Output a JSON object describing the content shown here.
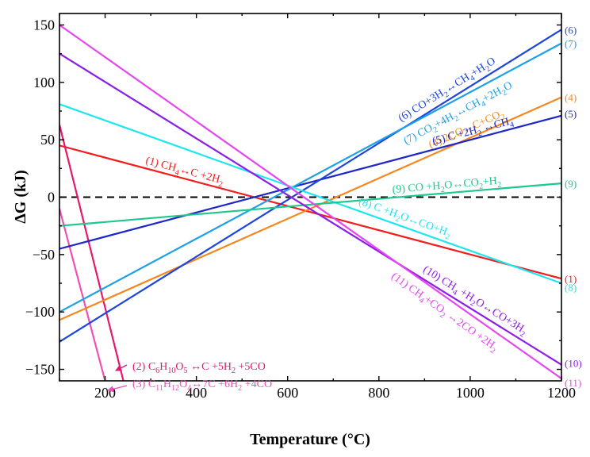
{
  "chart_data": {
    "type": "line",
    "xlabel": "Temperature (°C)",
    "ylabel": "ΔG (kJ)",
    "xlim": [
      100,
      1200
    ],
    "ylim": [
      -160,
      160
    ],
    "x_ticks": [
      200,
      400,
      600,
      800,
      1000,
      1200
    ],
    "y_ticks": [
      150,
      100,
      50,
      0,
      -50,
      -100,
      -150
    ],
    "x_tick_labels": [
      "200",
      "400",
      "600",
      "800",
      "1000",
      "1200"
    ],
    "y_tick_labels": [
      "150",
      "100",
      "50",
      "0",
      "−50",
      "−100",
      "−150"
    ],
    "reference_line": {
      "y": 0,
      "style": "dashed",
      "color": "#000000"
    },
    "series": [
      {
        "id": "1",
        "end_label": "(1)",
        "label": "(1) CH4↔C +2H2",
        "color": "#f01e1e",
        "points": [
          [
            100,
            45
          ],
          [
            1200,
            -71
          ]
        ]
      },
      {
        "id": "2",
        "label": "(2) C6H10O5 ↔C +5H2 +5CO",
        "color": "#e8166e",
        "points": [
          [
            100,
            63
          ],
          [
            240,
            -160
          ]
        ]
      },
      {
        "id": "3",
        "label": "(3) C11H12O4↔7C +6H2 +4CO",
        "color": "#f050b4",
        "points": [
          [
            100,
            -10
          ],
          [
            200,
            -160
          ]
        ]
      },
      {
        "id": "4",
        "end_label": "(4)",
        "label": "(4) 2CO↔C+CO2",
        "color": "#f5871e",
        "points": [
          [
            100,
            -107
          ],
          [
            1200,
            87
          ]
        ]
      },
      {
        "id": "5",
        "end_label": "(5)",
        "label": "(5) C +2H2 ↔CH4",
        "color": "#1e28c8",
        "points": [
          [
            100,
            -45
          ],
          [
            1200,
            71
          ]
        ]
      },
      {
        "id": "6",
        "end_label": "(6)",
        "label": "(6) CO+3H2↔CH4+H2O",
        "color": "#1e46dc",
        "points": [
          [
            100,
            -126
          ],
          [
            1200,
            146
          ]
        ]
      },
      {
        "id": "7",
        "end_label": "(7)",
        "label": "(7) CO2+4H2↔CH4+2H2O",
        "color": "#1ea0e6",
        "points": [
          [
            100,
            -100
          ],
          [
            1200,
            134
          ]
        ]
      },
      {
        "id": "8",
        "end_label": "(8)",
        "label": "(8) C +H2O↔CO+H2",
        "color": "#1ee6f0",
        "points": [
          [
            100,
            81
          ],
          [
            1200,
            -75
          ]
        ]
      },
      {
        "id": "9",
        "end_label": "(9)",
        "label": "(9) CO +H2O↔CO2+H2",
        "color": "#1ec88c",
        "points": [
          [
            100,
            -25
          ],
          [
            1200,
            12
          ]
        ]
      },
      {
        "id": "10",
        "end_label": "(10)",
        "label": "(10) CH4 +H2O↔CO+3H2",
        "color": "#8c1ee6",
        "points": [
          [
            100,
            125
          ],
          [
            1200,
            -146
          ]
        ]
      },
      {
        "id": "11",
        "end_label": "(11)",
        "label": "(11) CH4+CO2 ↔2CO +2H2",
        "color": "#e646f0",
        "points": [
          [
            100,
            150
          ],
          [
            1200,
            -158
          ]
        ]
      }
    ]
  }
}
